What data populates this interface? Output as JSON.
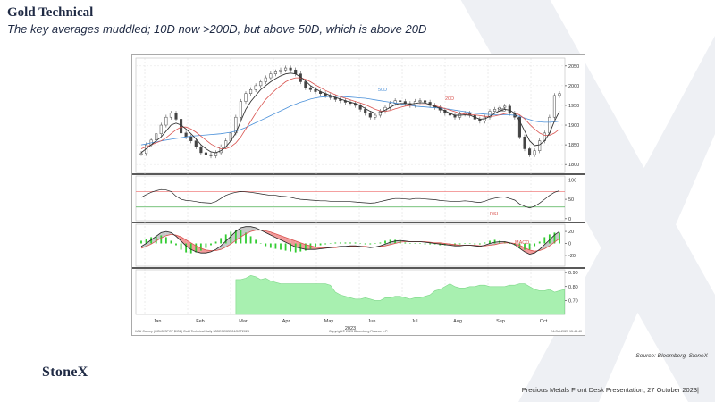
{
  "slide": {
    "title": "Gold Technical",
    "subtitle": "The key averages muddled; 10D now >200D, but above 50D, which is above 20D",
    "source": "Source: Bloomberg, StoneX",
    "logo": "StoneX",
    "footer": "Precious Metals Front Desk Presentation, 27 October 2023|"
  },
  "chart_data": {
    "type": "line",
    "year_label": "2023",
    "months": [
      "Jan",
      "Feb",
      "Mar",
      "Apr",
      "May",
      "Jun",
      "Jul",
      "Aug",
      "Sep",
      "Oct"
    ],
    "footer_left": "XAU Curncy (GOLD SPOT $/OZ) Gold Technical  Daily 30DEC2022-24OCT2023",
    "footer_center": "Copyright© 2023 Bloomberg Finance L.P.",
    "footer_right": "24-Oct-2023 15:44:40",
    "colors": {
      "price": "#2b2b2b",
      "ma10": "#333333",
      "ma20": "#d9534f",
      "ma50": "#4a90d9",
      "rsi": "#222222",
      "macd_hist": "#33cc33",
      "vol_fill": "#a8f0b0"
    },
    "price_panel": {
      "ylim": [
        1780,
        2070
      ],
      "ticks": [
        1800,
        1850,
        1900,
        1950,
        2000,
        2050
      ],
      "ma_labels": [
        "50D",
        "20D",
        "10D"
      ],
      "price": [
        1828,
        1850,
        1862,
        1878,
        1900,
        1920,
        1930,
        1915,
        1880,
        1870,
        1860,
        1845,
        1830,
        1825,
        1822,
        1830,
        1845,
        1860,
        1880,
        1920,
        1960,
        1980,
        1990,
        2000,
        2010,
        2020,
        2030,
        2035,
        2040,
        2045,
        2040,
        2030,
        2010,
        1995,
        1990,
        1985,
        1980,
        1975,
        1970,
        1965,
        1962,
        1958,
        1955,
        1950,
        1940,
        1930,
        1920,
        1925,
        1935,
        1945,
        1955,
        1962,
        1960,
        1955,
        1950,
        1960,
        1962,
        1958,
        1950,
        1945,
        1938,
        1930,
        1925,
        1920,
        1928,
        1930,
        1925,
        1915,
        1910,
        1920,
        1935,
        1940,
        1945,
        1948,
        1930,
        1920,
        1870,
        1840,
        1825,
        1835,
        1860,
        1880,
        1920,
        1975,
        1980
      ],
      "ma10": [
        1830,
        1840,
        1850,
        1860,
        1870,
        1885,
        1900,
        1905,
        1900,
        1890,
        1878,
        1865,
        1850,
        1840,
        1832,
        1830,
        1835,
        1845,
        1860,
        1880,
        1910,
        1940,
        1960,
        1975,
        1990,
        2000,
        2010,
        2018,
        2025,
        2030,
        2032,
        2030,
        2022,
        2012,
        2000,
        1992,
        1985,
        1980,
        1975,
        1970,
        1966,
        1962,
        1958,
        1955,
        1950,
        1942,
        1935,
        1930,
        1932,
        1938,
        1945,
        1952,
        1955,
        1955,
        1953,
        1955,
        1957,
        1956,
        1952,
        1948,
        1942,
        1936,
        1930,
        1925,
        1925,
        1926,
        1925,
        1920,
        1915,
        1916,
        1922,
        1930,
        1936,
        1940,
        1938,
        1930,
        1910,
        1885,
        1860,
        1848,
        1850,
        1860,
        1880,
        1910,
        1935
      ],
      "ma20": [
        1840,
        1845,
        1850,
        1855,
        1860,
        1868,
        1878,
        1888,
        1895,
        1895,
        1890,
        1882,
        1872,
        1862,
        1852,
        1845,
        1840,
        1840,
        1845,
        1855,
        1870,
        1890,
        1910,
        1930,
        1948,
        1965,
        1978,
        1990,
        2000,
        2010,
        2016,
        2020,
        2020,
        2016,
        2010,
        2002,
        1995,
        1988,
        1982,
        1977,
        1972,
        1968,
        1964,
        1960,
        1956,
        1952,
        1946,
        1940,
        1936,
        1935,
        1937,
        1941,
        1945,
        1948,
        1950,
        1951,
        1952,
        1952,
        1951,
        1949,
        1946,
        1942,
        1938,
        1934,
        1930,
        1928,
        1927,
        1926,
        1924,
        1922,
        1922,
        1923,
        1926,
        1929,
        1931,
        1931,
        1926,
        1916,
        1902,
        1890,
        1880,
        1874,
        1874,
        1880,
        1890
      ],
      "ma50": [
        1850,
        1852,
        1855,
        1857,
        1860,
        1862,
        1864,
        1866,
        1868,
        1870,
        1872,
        1873,
        1874,
        1875,
        1876,
        1877,
        1878,
        1880,
        1882,
        1885,
        1889,
        1894,
        1900,
        1906,
        1912,
        1918,
        1924,
        1930,
        1936,
        1942,
        1948,
        1953,
        1958,
        1962,
        1966,
        1969,
        1971,
        1972,
        1973,
        1973,
        1973,
        1972,
        1971,
        1970,
        1969,
        1968,
        1966,
        1964,
        1962,
        1960,
        1958,
        1956,
        1954,
        1952,
        1950,
        1948,
        1947,
        1946,
        1945,
        1944,
        1943,
        1942,
        1940,
        1938,
        1936,
        1934,
        1932,
        1930,
        1929,
        1928,
        1927,
        1926,
        1926,
        1926,
        1926,
        1925,
        1922,
        1918,
        1914,
        1910,
        1908,
        1907,
        1907,
        1908,
        1910
      ]
    },
    "rsi_panel": {
      "ylim": [
        -5,
        110
      ],
      "ticks": [
        0,
        50,
        100
      ],
      "overbought": 70,
      "oversold": 30,
      "label": "RSI",
      "values": [
        55,
        62,
        68,
        72,
        75,
        74,
        70,
        58,
        50,
        47,
        46,
        44,
        42,
        41,
        40,
        44,
        52,
        60,
        65,
        68,
        70,
        69,
        68,
        66,
        64,
        62,
        60,
        60,
        58,
        57,
        55,
        52,
        50,
        49,
        48,
        47,
        46,
        46,
        45,
        45,
        44,
        44,
        44,
        43,
        42,
        41,
        40,
        41,
        44,
        47,
        50,
        52,
        52,
        51,
        50,
        52,
        52,
        51,
        50,
        49,
        47,
        46,
        45,
        44,
        45,
        46,
        45,
        43,
        42,
        45,
        50,
        53,
        55,
        56,
        52,
        48,
        38,
        32,
        28,
        32,
        40,
        50,
        60,
        68,
        72
      ]
    },
    "macd_panel": {
      "ylim": [
        -38,
        32
      ],
      "ticks": [
        20,
        0,
        -20
      ],
      "label": "MACD",
      "macd": [
        -5,
        0,
        6,
        12,
        18,
        20,
        18,
        12,
        4,
        -4,
        -10,
        -14,
        -16,
        -16,
        -14,
        -10,
        -4,
        4,
        12,
        20,
        26,
        28,
        28,
        26,
        22,
        18,
        14,
        10,
        6,
        2,
        -2,
        -6,
        -8,
        -10,
        -10,
        -10,
        -9,
        -8,
        -7,
        -6,
        -5,
        -5,
        -4,
        -4,
        -5,
        -6,
        -7,
        -6,
        -4,
        -1,
        2,
        4,
        5,
        4,
        3,
        3,
        3,
        2,
        1,
        0,
        -1,
        -2,
        -3,
        -4,
        -4,
        -3,
        -3,
        -4,
        -5,
        -3,
        0,
        2,
        3,
        3,
        1,
        -2,
        -8,
        -14,
        -18,
        -16,
        -10,
        -2,
        6,
        14,
        20
      ],
      "signal": [
        -8,
        -5,
        -1,
        4,
        9,
        13,
        15,
        14,
        11,
        6,
        1,
        -4,
        -8,
        -11,
        -12,
        -12,
        -10,
        -6,
        -1,
        5,
        11,
        16,
        20,
        22,
        22,
        21,
        19,
        16,
        13,
        10,
        7,
        4,
        1,
        -2,
        -4,
        -6,
        -7,
        -7,
        -7,
        -7,
        -6,
        -6,
        -5,
        -5,
        -5,
        -5,
        -6,
        -6,
        -5,
        -4,
        -2,
        0,
        2,
        3,
        3,
        3,
        3,
        3,
        2,
        1,
        1,
        0,
        -1,
        -2,
        -3,
        -3,
        -3,
        -3,
        -4,
        -4,
        -3,
        -2,
        0,
        1,
        1,
        0,
        -3,
        -7,
        -11,
        -13,
        -12,
        -9,
        -4,
        2,
        8
      ]
    },
    "vol_panel": {
      "ylim": [
        0.6,
        0.92
      ],
      "ticks": [
        0.9,
        0.8,
        0.7
      ],
      "start_index": 19,
      "values": [
        0.85,
        0.85,
        0.86,
        0.88,
        0.87,
        0.85,
        0.86,
        0.84,
        0.83,
        0.82,
        0.82,
        0.82,
        0.82,
        0.82,
        0.82,
        0.82,
        0.82,
        0.82,
        0.82,
        0.81,
        0.76,
        0.74,
        0.73,
        0.72,
        0.71,
        0.71,
        0.72,
        0.71,
        0.7,
        0.7,
        0.72,
        0.72,
        0.73,
        0.73,
        0.72,
        0.71,
        0.72,
        0.72,
        0.73,
        0.74,
        0.77,
        0.78,
        0.8,
        0.82,
        0.8,
        0.79,
        0.79,
        0.8,
        0.8,
        0.81,
        0.81,
        0.8,
        0.8,
        0.8,
        0.8,
        0.81,
        0.81,
        0.82,
        0.82,
        0.8,
        0.78,
        0.77,
        0.77,
        0.78,
        0.76,
        0.77,
        0.78
      ]
    }
  }
}
